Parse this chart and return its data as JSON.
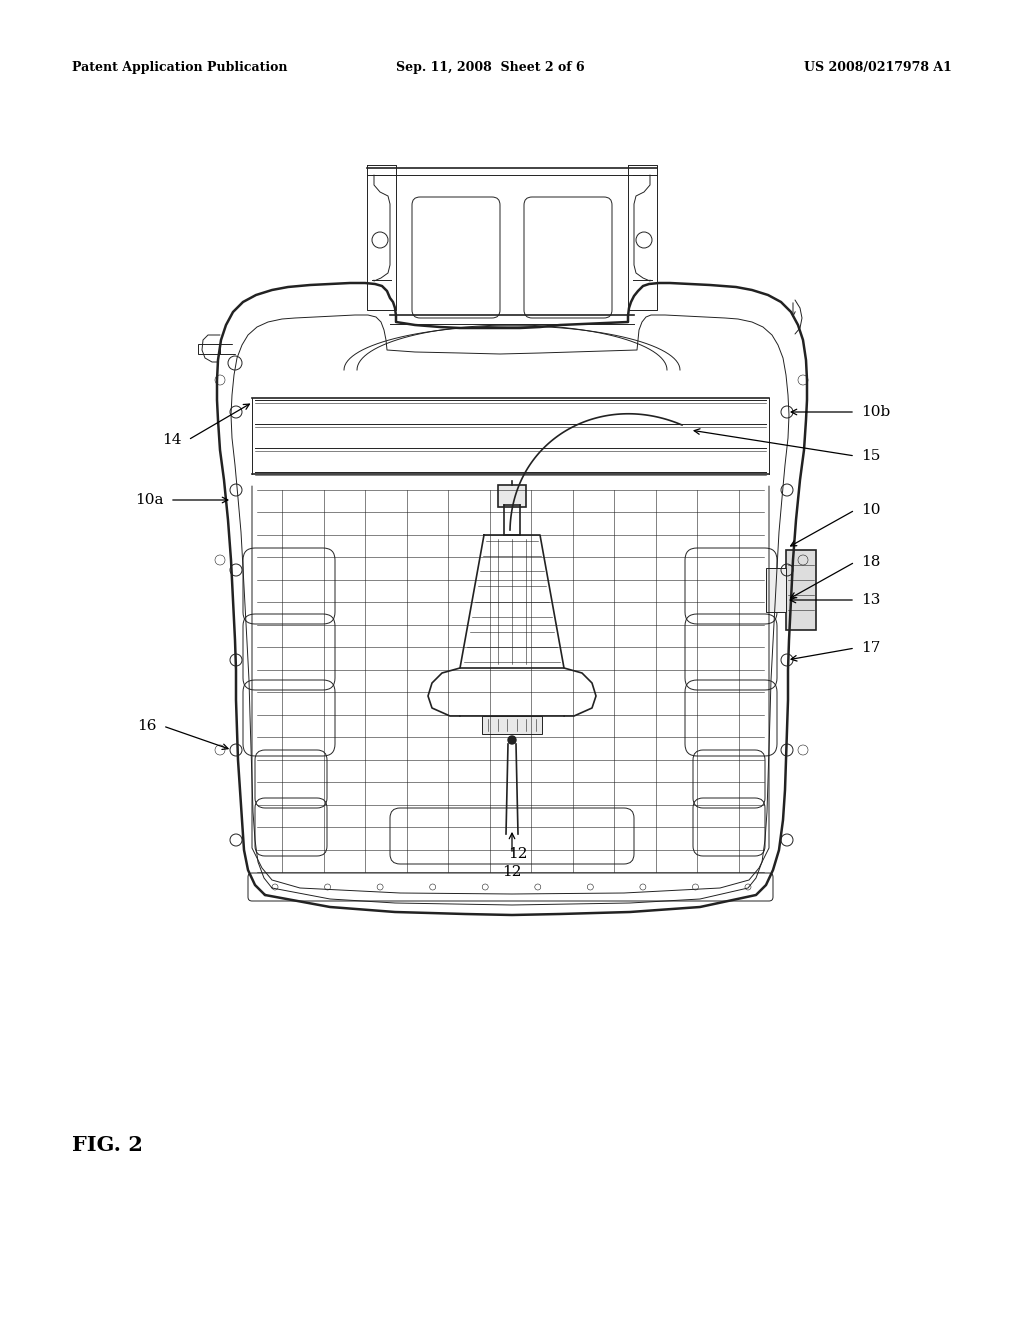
{
  "header_left": "Patent Application Publication",
  "header_center": "Sep. 11, 2008  Sheet 2 of 6",
  "header_right": "US 2008/0217978 A1",
  "fig_label": "FIG. 2",
  "background": "#ffffff",
  "ink": "#222222",
  "lw_outer": 1.8,
  "lw_main": 1.2,
  "lw_thin": 0.7,
  "lw_hair": 0.4
}
